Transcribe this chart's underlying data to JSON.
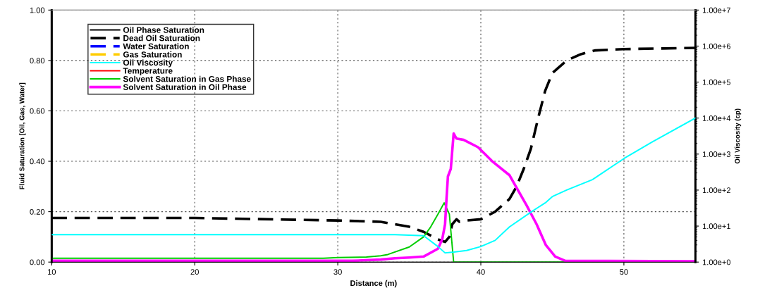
{
  "chart_data": {
    "type": "line",
    "xlabel": "Distance (m)",
    "ylabel": "Fluid Saturation [Oil, Gas, Water]",
    "y2label": "Oil Viscosity (cp)",
    "xlim": [
      10,
      55
    ],
    "xticks": [
      10,
      20,
      30,
      40,
      50
    ],
    "ylim": [
      0,
      1
    ],
    "yticks": [
      {
        "value": 0,
        "label": "0.00"
      },
      {
        "value": 0.2,
        "label": "0.20"
      },
      {
        "value": 0.4,
        "label": "0.40"
      },
      {
        "value": 0.6,
        "label": "0.60"
      },
      {
        "value": 0.8,
        "label": "0.80"
      },
      {
        "value": 1,
        "label": "1.00"
      }
    ],
    "log": "y2",
    "y2lim": [
      1,
      10000000
    ],
    "y2ticks": [
      {
        "value": 1,
        "label": "1.00e+0"
      },
      {
        "value": 10,
        "label": "1.00e+1"
      },
      {
        "value": 100,
        "label": "1.00e+2"
      },
      {
        "value": 1000,
        "label": "1.00e+3"
      },
      {
        "value": 10000,
        "label": "1.00e+4"
      },
      {
        "value": 100000,
        "label": "1.00e+5"
      },
      {
        "value": 1000000,
        "label": "1.00e+6"
      },
      {
        "value": 10000000,
        "label": "1.00e+7"
      }
    ],
    "grid": true,
    "legend": "top left",
    "marker": "none",
    "series": [
      {
        "name": "Oil Phase Saturation",
        "color": "#000000",
        "line_style": "solid",
        "values": [
          null
        ]
      },
      {
        "name": "Dead Oil Saturation",
        "color": "#000000",
        "line_style": "dashed",
        "x": [
          10,
          20,
          30,
          33,
          35,
          36,
          37,
          37.5,
          37.8,
          38.0,
          38.3,
          38.5,
          39,
          40,
          41,
          42,
          42.5,
          43,
          43.5,
          44,
          44.5,
          45,
          46,
          47,
          48,
          50,
          55
        ],
        "values": [
          0.175,
          0.175,
          0.165,
          0.16,
          0.14,
          0.12,
          0.09,
          0.08,
          0.1,
          0.15,
          0.17,
          0.16,
          0.165,
          0.17,
          0.2,
          0.25,
          0.3,
          0.37,
          0.45,
          0.57,
          0.68,
          0.75,
          0.8,
          0.825,
          0.84,
          0.845,
          0.85
        ]
      },
      {
        "name": "Water Saturation",
        "color": "#0000ff",
        "line_style": "dashed",
        "values": [
          null
        ]
      },
      {
        "name": "Gas Saturation",
        "color": "#ffcc00",
        "line_style": "dashed",
        "values": [
          null
        ]
      },
      {
        "name": "Oil Viscosity",
        "color": "#00ffff",
        "line_style": "solid",
        "axis": "y2",
        "x": [
          10,
          20,
          30,
          34,
          35,
          36,
          37,
          37.5,
          38.1,
          39,
          40,
          41,
          42,
          43.6,
          44.5,
          45,
          46,
          47.8,
          50,
          52,
          55
        ],
        "values": [
          5.8,
          5.8,
          5.8,
          5.8,
          5.6,
          5.4,
          2.7,
          1.8,
          1.9,
          2.1,
          2.7,
          4,
          9.5,
          26,
          44,
          66,
          100,
          195,
          750,
          2200,
          10000
        ]
      },
      {
        "name": "Temperature",
        "color": "#ff0000",
        "line_style": "solid",
        "values": [
          null
        ]
      },
      {
        "name": "Solvent Saturation in Gas Phase",
        "color": "#00cc00",
        "line_style": "solid",
        "x": [
          10,
          29,
          30,
          32,
          33,
          33.5,
          35,
          36,
          36.5,
          37,
          37.44,
          37.8,
          38.1,
          55
        ],
        "values": [
          0.015,
          0.015,
          0.018,
          0.02,
          0.025,
          0.03,
          0.06,
          0.1,
          0.14,
          0.19,
          0.235,
          0.19,
          0,
          0
        ]
      },
      {
        "name": "Solvent Saturation in Oil Phase",
        "color": "#ff00ff",
        "line_style": "solid",
        "x": [
          10,
          31,
          33,
          34,
          35,
          36,
          37,
          37.3,
          37.5,
          37.6,
          37.7,
          37.9,
          38.1,
          38.3,
          38.8,
          39.8,
          40.8,
          42,
          43.2,
          43.9,
          44.55,
          45.2,
          45.9,
          55
        ],
        "values": [
          0.005,
          0.005,
          0.01,
          0.015,
          0.018,
          0.022,
          0.053,
          0.09,
          0.15,
          0.25,
          0.34,
          0.37,
          0.51,
          0.49,
          0.485,
          0.456,
          0.4,
          0.345,
          0.225,
          0.15,
          0.067,
          0.022,
          0.005,
          0.003
        ]
      }
    ]
  }
}
